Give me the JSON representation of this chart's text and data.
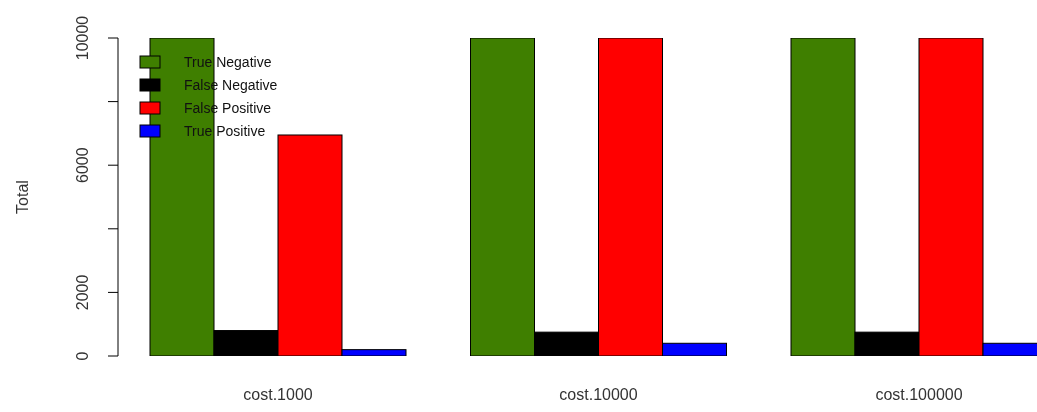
{
  "chart_data": {
    "type": "bar",
    "ylabel": "Total",
    "categories": [
      "cost.1000",
      "cost.10000",
      "cost.100000"
    ],
    "series": [
      {
        "name": "True Negative",
        "color": "#3f7f00",
        "values": [
          10000,
          10000,
          10000
        ]
      },
      {
        "name": "False Negative",
        "color": "#000000",
        "values": [
          800,
          750,
          750
        ]
      },
      {
        "name": "False Positive",
        "color": "#ff0000",
        "values": [
          6950,
          10000,
          10000
        ]
      },
      {
        "name": "True Positive",
        "color": "#0000ff",
        "values": [
          200,
          400,
          400
        ]
      }
    ],
    "ylim": [
      0,
      10000
    ],
    "yticks": [
      0,
      2000,
      {
        "value": 4000,
        "label": null
      },
      6000,
      {
        "value": 8000,
        "label": null
      },
      10000
    ],
    "legend": "top left"
  }
}
